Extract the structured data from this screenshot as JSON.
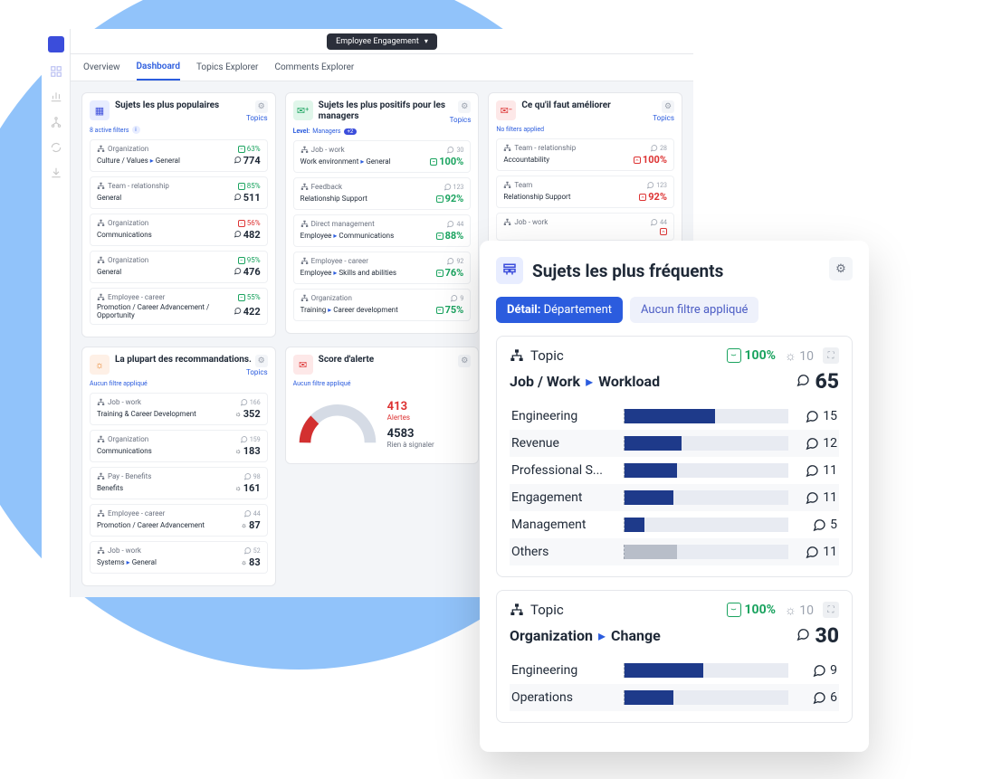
{
  "top_dropdown": "Employee Engagement",
  "tabs": [
    "Overview",
    "Dashboard",
    "Topics Explorer",
    "Comments Explorer"
  ],
  "active_tab": 1,
  "cards": {
    "popular": {
      "title": "Sujets les plus populaires",
      "link": "Topics",
      "filter": "8 active filters",
      "rows": [
        {
          "cat": "Organization",
          "path": "Culture / Values",
          "sub": "General",
          "pct": "63%",
          "pct_color": "green",
          "val": "774",
          "icon": "💬"
        },
        {
          "cat": "Team - relationship",
          "path": "General",
          "sub": "",
          "pct": "85%",
          "pct_color": "green",
          "val": "511",
          "icon": "💬"
        },
        {
          "cat": "Organization",
          "path": "Communications",
          "sub": "",
          "pct": "56%",
          "pct_color": "red",
          "val": "482",
          "icon": "💬"
        },
        {
          "cat": "Organization",
          "path": "General",
          "sub": "",
          "pct": "95%",
          "pct_color": "green",
          "val": "476",
          "icon": "💬"
        },
        {
          "cat": "Employee - career",
          "path": "Promotion / Career Advancement / Opportunity",
          "sub": "",
          "pct": "55%",
          "pct_color": "green",
          "val": "422",
          "icon": "💬"
        }
      ]
    },
    "positive": {
      "title": "Sujets les plus positifs pour les managers",
      "link": "Topics",
      "filter_label": "Level:",
      "filter_value": "Managers",
      "filter_badge": "+2",
      "rows": [
        {
          "cat": "Job - work",
          "path": "Work environment",
          "sub": "General",
          "cnt": "30",
          "val": "100%"
        },
        {
          "cat": "Feedback",
          "path": "Relationship Support",
          "sub": "",
          "cnt": "123",
          "val": "92%"
        },
        {
          "cat": "Direct management",
          "path": "Employee",
          "sub": "Communications",
          "cnt": "44",
          "val": "88%"
        },
        {
          "cat": "Employee - career",
          "path": "Employee",
          "sub": "Skills and abilities",
          "cnt": "92",
          "val": "76%"
        },
        {
          "cat": "Organization",
          "path": "Training",
          "sub": "Career development",
          "cnt": "9",
          "val": "75%"
        }
      ]
    },
    "improve": {
      "title": "Ce qu'il faut améliorer",
      "link": "Topics",
      "filter": "No filters applied",
      "rows": [
        {
          "cat": "Team - relationship",
          "path": "Accountability",
          "sub": "",
          "cnt": "28",
          "val": "100%",
          "color": "red"
        },
        {
          "cat": "Team",
          "path": "Relationship Support",
          "sub": "",
          "cnt": "123",
          "val": "92%",
          "color": "red"
        },
        {
          "cat": "Job - work",
          "path": "",
          "sub": "",
          "cnt": "44",
          "val": "",
          "color": "red"
        }
      ]
    },
    "reco": {
      "title": "La plupart des recommandations.",
      "link": "Topics",
      "filter": "Aucun filtre appliqué",
      "rows": [
        {
          "cat": "Job - work",
          "path": "Training & Career Development",
          "sub": "",
          "cnt": "166",
          "val": "352",
          "icon": "☼"
        },
        {
          "cat": "Organization",
          "path": "Communications",
          "sub": "",
          "cnt": "159",
          "val": "183",
          "icon": "☼"
        },
        {
          "cat": "Pay - Benefits",
          "path": "Benefits",
          "sub": "",
          "cnt": "98",
          "val": "161",
          "icon": "☼"
        },
        {
          "cat": "Employee - career",
          "path": "Promotion / Career Advancement",
          "sub": "",
          "cnt": "44",
          "val": "87",
          "icon": "☼"
        },
        {
          "cat": "Job - work",
          "path": "Systems",
          "sub": "General",
          "cnt": "52",
          "val": "83",
          "icon": "☼"
        }
      ]
    },
    "alert": {
      "title": "Score d'alerte",
      "filter": "Aucun filtre appliqué",
      "alerts": "413",
      "alerts_label": "Alertes",
      "ok": "4583",
      "ok_label": "Rien à signaler",
      "gauge_pct": 0.09,
      "gauge_colors": {
        "alert": "#d33030",
        "track": "#d5dbe5"
      }
    }
  },
  "detail": {
    "title": "Sujets les plus fréquents",
    "chip1_label": "Détail:",
    "chip1_value": "Département",
    "chip2": "Aucun filtre appliqué",
    "topics": [
      {
        "label": "Topic",
        "path1": "Job / Work",
        "path2": "Workload",
        "sentiment": "100%",
        "gray_count": "10",
        "total": "65",
        "bars": [
          {
            "label": "Engineering",
            "val": 15,
            "pct": 55
          },
          {
            "label": "Revenue",
            "val": 12,
            "pct": 35
          },
          {
            "label": "Professional S...",
            "val": 11,
            "pct": 32
          },
          {
            "label": "Engagement",
            "val": 11,
            "pct": 30
          },
          {
            "label": "Management",
            "val": 5,
            "pct": 12
          },
          {
            "label": "Others",
            "val": 11,
            "pct": 32,
            "gray": true
          }
        ]
      },
      {
        "label": "Topic",
        "path1": "Organization",
        "path2": "Change",
        "sentiment": "100%",
        "gray_count": "10",
        "total": "30",
        "bars": [
          {
            "label": "Engineering",
            "val": 9,
            "pct": 48
          },
          {
            "label": "Operations",
            "val": 6,
            "pct": 30
          }
        ]
      }
    ]
  },
  "colors": {
    "accent": "#2b5cde",
    "green": "#1aa35f",
    "red": "#d33030",
    "bar_fill": "#1e3a8a",
    "bar_track": "#e8ebf2"
  }
}
